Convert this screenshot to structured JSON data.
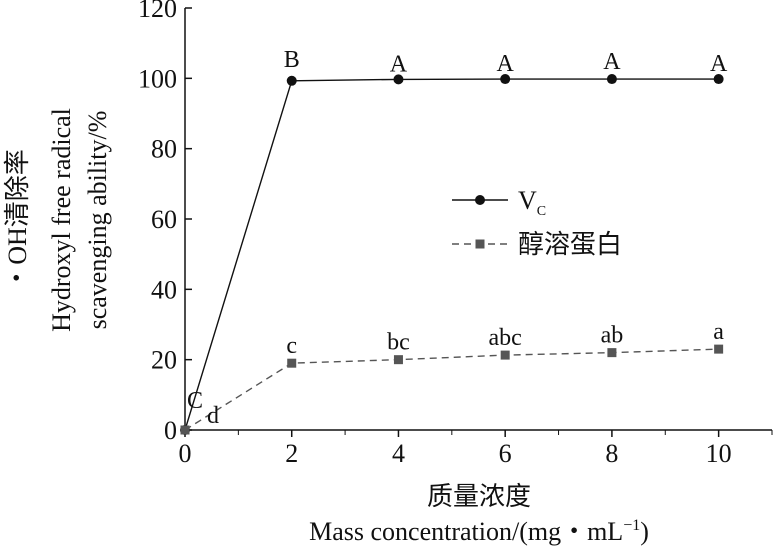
{
  "chart_data": {
    "type": "line",
    "x": [
      0,
      2,
      4,
      6,
      8,
      10
    ],
    "xlim": [
      0,
      11
    ],
    "ylim": [
      0,
      120
    ],
    "xticks": [
      0,
      2,
      4,
      6,
      8,
      10
    ],
    "yticks": [
      0,
      20,
      40,
      60,
      80,
      100,
      120
    ],
    "xlabel_cn": "质量浓度",
    "xlabel_en": "Mass concentration/(mg・mL",
    "xlabel_en_sup": "−1",
    "xlabel_en_end": ")",
    "ylabel_cn": "・OH清除率",
    "ylabel_en_line1": "Hydroxyl free radical",
    "ylabel_en_line2": "scavenging ability/%",
    "grid": false,
    "legend_position": "center-right",
    "series": [
      {
        "name": "V",
        "name_sub": "C",
        "values": [
          0,
          99.3,
          99.7,
          99.8,
          99.8,
          99.8
        ],
        "letters": [
          "C",
          "B",
          "A",
          "A",
          "A",
          "A"
        ],
        "marker": "circle",
        "line": "solid",
        "color": "#111111"
      },
      {
        "name": "醇溶蛋白",
        "values": [
          0,
          19,
          20,
          21.3,
          22,
          23
        ],
        "letters": [
          "d",
          "c",
          "bc",
          "abc",
          "ab",
          "a"
        ],
        "marker": "square",
        "line": "dashed",
        "color": "#555555"
      }
    ]
  }
}
